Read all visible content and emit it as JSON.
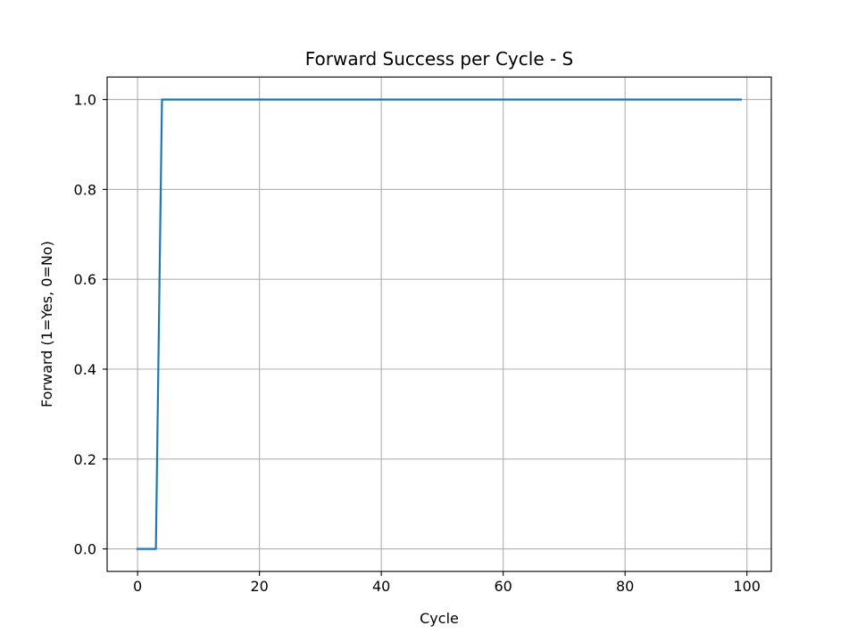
{
  "chart_data": {
    "type": "line",
    "title": "Forward Success per Cycle - S",
    "xlabel": "Cycle",
    "ylabel": "Forward (1=Yes, 0=No)",
    "xlim": [
      -5,
      104
    ],
    "ylim": [
      -0.05,
      1.05
    ],
    "xticks": [
      0,
      20,
      40,
      60,
      80,
      100
    ],
    "yticks": [
      0.0,
      0.2,
      0.4,
      0.6,
      0.8,
      1.0
    ],
    "xtick_labels": [
      "0",
      "20",
      "40",
      "60",
      "80",
      "100"
    ],
    "ytick_labels": [
      "0.0",
      "0.2",
      "0.4",
      "0.6",
      "0.8",
      "1.0"
    ],
    "grid": true,
    "series": [
      {
        "color": "#1f77b4",
        "x": [
          0,
          1,
          2,
          3,
          4,
          99
        ],
        "y": [
          0,
          0,
          0,
          0,
          1,
          1
        ]
      }
    ]
  }
}
